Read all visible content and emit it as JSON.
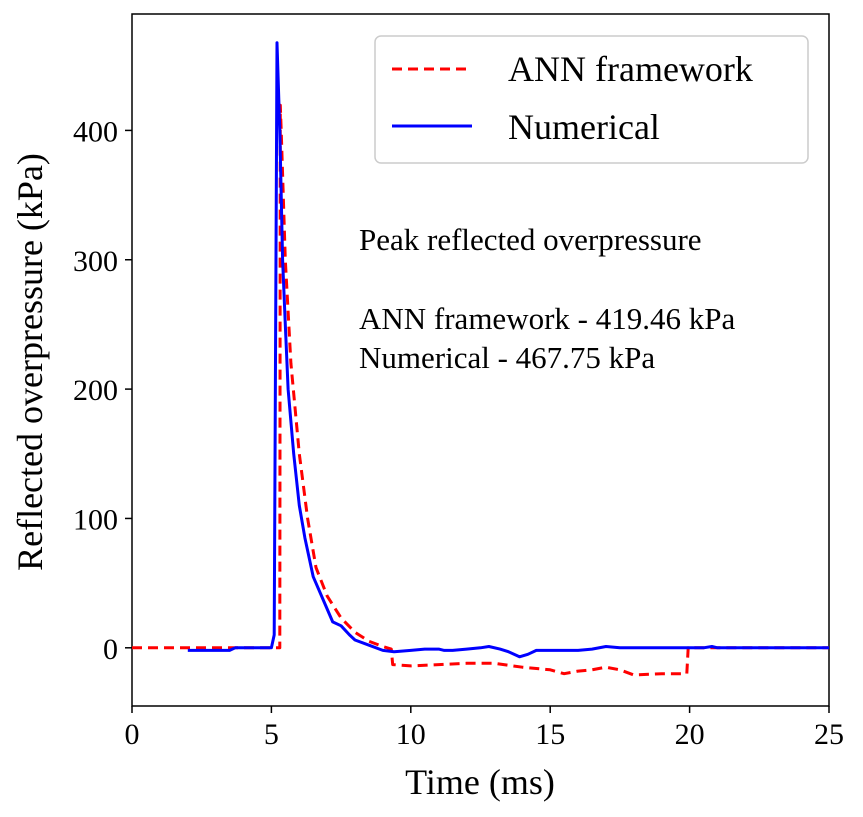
{
  "chart_data": {
    "type": "line",
    "xlabel": "Time (ms)",
    "ylabel": "Reflected overpressure (kPa)",
    "xlim": [
      0,
      25
    ],
    "ylim": [
      -45,
      490
    ],
    "xticks": [
      0,
      5,
      10,
      15,
      20,
      25
    ],
    "yticks": [
      0,
      100,
      200,
      300,
      400
    ],
    "grid": false,
    "legend_position": "top-right",
    "series": [
      {
        "name": "ANN framework",
        "color": "#ff0000",
        "style": "dashed",
        "x": [
          0,
          3.5,
          4.0,
          5.0,
          5.2,
          5.3,
          5.32,
          5.35,
          5.5,
          5.7,
          6.0,
          6.3,
          6.6,
          7.0,
          7.5,
          8.0,
          8.5,
          9.0,
          9.3,
          9.35,
          10.0,
          11.0,
          12.0,
          13.0,
          14.0,
          15.0,
          15.5,
          16.0,
          16.5,
          17.0,
          17.5,
          18.0,
          19.0,
          19.9,
          19.95,
          20.5,
          21.0,
          22.0,
          23.0,
          24.0,
          25.0
        ],
        "y": [
          0,
          0,
          0,
          0,
          0,
          0,
          419.46,
          400,
          300,
          220,
          150,
          100,
          62,
          40,
          23,
          12,
          5,
          1,
          -1,
          -13,
          -14,
          -13,
          -12,
          -12,
          -15,
          -17,
          -20,
          -18,
          -17,
          -15,
          -17,
          -21,
          -20,
          -20,
          0,
          0,
          0,
          0,
          0,
          0,
          0
        ]
      },
      {
        "name": "Numerical",
        "color": "#0000ff",
        "style": "solid",
        "x": [
          2.0,
          3.0,
          3.5,
          3.7,
          4.0,
          4.5,
          5.0,
          5.1,
          5.2,
          5.3,
          5.4,
          5.5,
          5.6,
          5.8,
          6.0,
          6.2,
          6.5,
          6.8,
          7.2,
          7.5,
          7.8,
          8.0,
          8.5,
          9.0,
          9.4,
          10.0,
          10.5,
          11.0,
          11.2,
          11.5,
          12.0,
          12.5,
          12.8,
          13.2,
          13.5,
          13.9,
          14.2,
          14.5,
          15.0,
          16.0,
          16.5,
          17.0,
          17.5,
          18.0,
          19.0,
          20.0,
          20.5,
          20.8,
          21.0,
          22.0,
          23.0,
          24.0,
          25.0
        ],
        "y": [
          -2,
          -2,
          -2,
          0,
          0,
          0,
          0,
          10,
          467.75,
          400,
          300,
          250,
          200,
          150,
          110,
          85,
          55,
          40,
          20,
          17,
          10,
          6,
          2,
          -2,
          -3,
          -2,
          -1,
          -1,
          -2,
          -2,
          -1,
          0,
          1,
          -1,
          -3,
          -7,
          -5,
          -2,
          -2,
          -2,
          -1,
          1,
          0,
          0,
          0,
          0,
          0,
          1,
          0,
          0,
          0,
          0,
          0
        ]
      }
    ],
    "annotation": {
      "heading": "Peak reflected overpressure",
      "line1": "ANN framework - 419.46 kPa",
      "line2": "Numerical - 467.75 kPa"
    }
  }
}
